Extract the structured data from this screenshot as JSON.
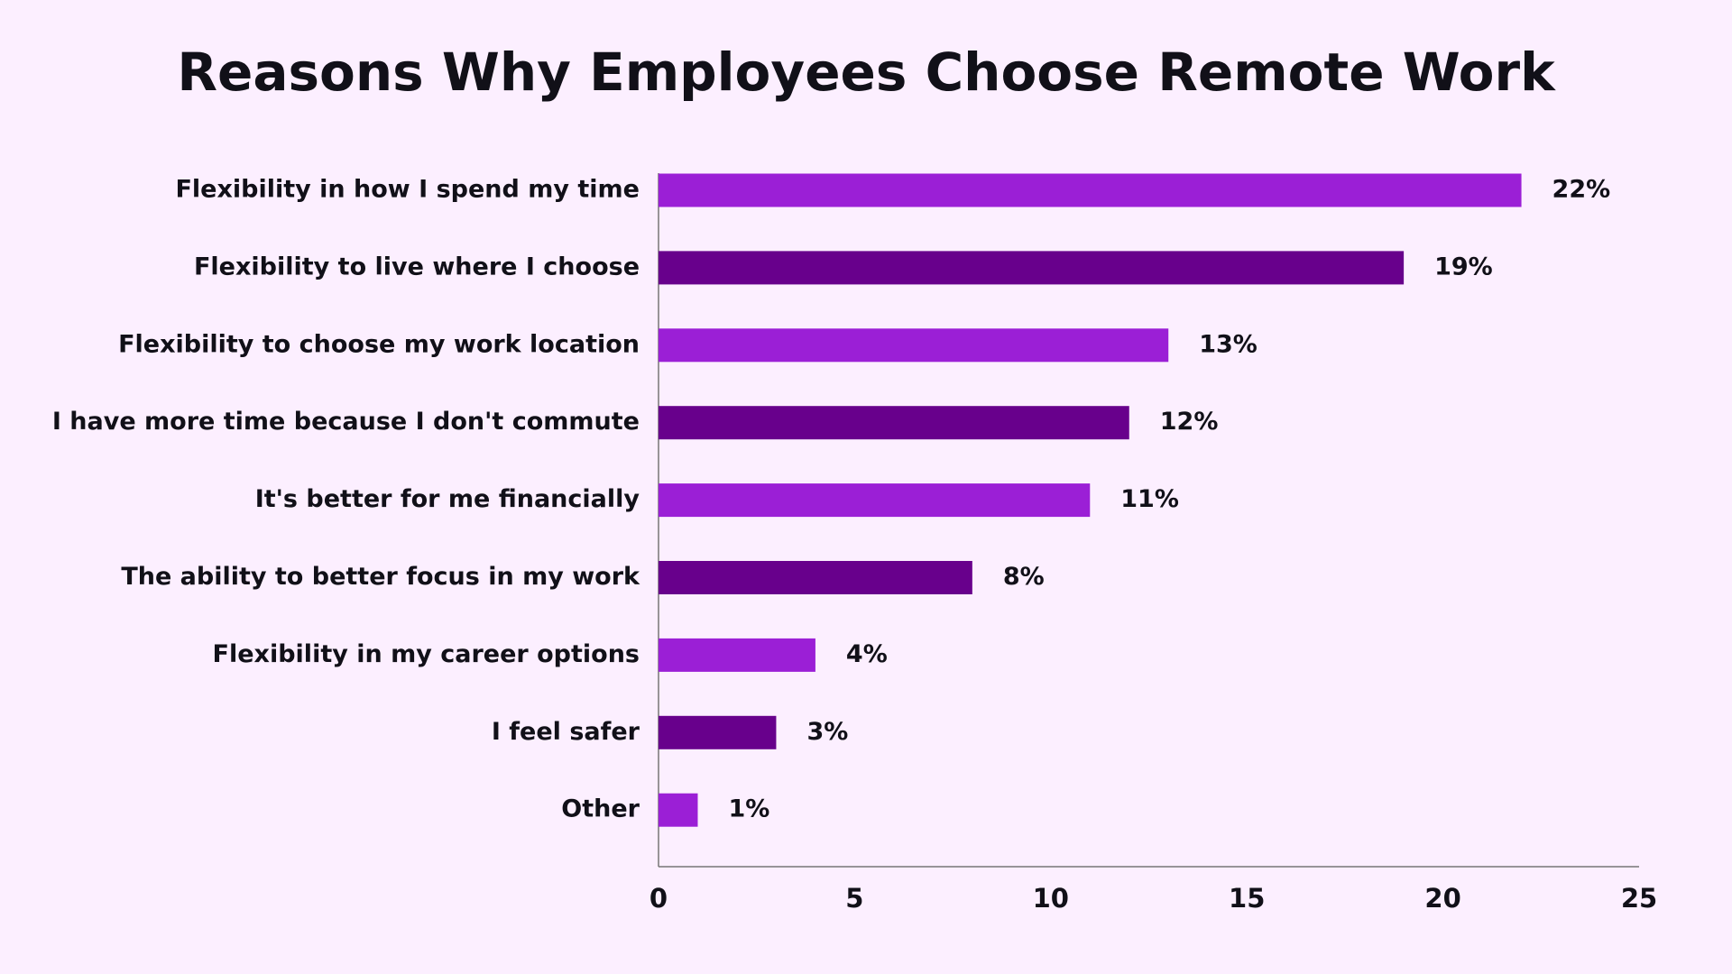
{
  "chart_data": {
    "type": "bar",
    "orientation": "horizontal",
    "title": "Reasons Why Employees Choose Remote Work",
    "categories": [
      "Flexibility in how I spend my time",
      "Flexibility to live where I choose",
      "Flexibility to choose my work location",
      "I have more time because I don't commute",
      "It's better for me financially",
      "The ability to better focus in my work",
      "Flexibility in my career options",
      "I feel safer",
      "Other"
    ],
    "values": [
      22,
      19,
      13,
      12,
      11,
      8,
      4,
      3,
      1
    ],
    "value_labels": [
      "22%",
      "19%",
      "13%",
      "12%",
      "11%",
      "8%",
      "4%",
      "3%",
      "1%"
    ],
    "colors": [
      "#9b1fd6",
      "#68008c",
      "#9b1fd6",
      "#68008c",
      "#9b1fd6",
      "#68008c",
      "#9b1fd6",
      "#68008c",
      "#9b1fd6"
    ],
    "xlim": [
      0,
      25
    ],
    "xticks": [
      0,
      5,
      10,
      15,
      20,
      25
    ],
    "grid": false
  }
}
